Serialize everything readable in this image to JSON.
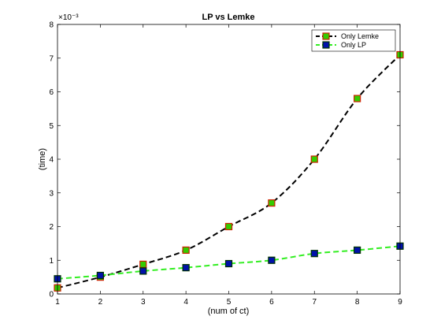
{
  "chart_data": {
    "type": "line",
    "title": "LP vs Lemke",
    "xlabel": "(num of ct)",
    "ylabel": "(time)",
    "exponent_label": "×10⁻³",
    "xlim": [
      1,
      9
    ],
    "ylim": [
      0,
      8
    ],
    "xticks": [
      1,
      2,
      3,
      4,
      5,
      6,
      7,
      8,
      9
    ],
    "yticks": [
      0,
      1,
      2,
      3,
      4,
      5,
      6,
      7,
      8
    ],
    "scale_factor": 0.001,
    "legend_position": "top-right",
    "series": [
      {
        "name": "Only Lemke",
        "x": [
          1,
          2,
          3,
          4,
          5,
          6,
          7,
          8,
          9
        ],
        "y": [
          0.18,
          0.5,
          0.88,
          1.3,
          2.0,
          2.7,
          4.0,
          5.8,
          7.1
        ],
        "line_color": "#000000",
        "marker_face": "#33cc00",
        "marker_edge": "#cc2200",
        "line_style": "dashed"
      },
      {
        "name": "Only LP",
        "x": [
          1,
          2,
          3,
          4,
          5,
          6,
          7,
          8,
          9
        ],
        "y": [
          0.45,
          0.55,
          0.68,
          0.78,
          0.9,
          1.0,
          1.2,
          1.3,
          1.42
        ],
        "line_color": "#33ee22",
        "marker_face": "#0011aa",
        "marker_edge": "#003300",
        "line_style": "dashed"
      }
    ]
  }
}
